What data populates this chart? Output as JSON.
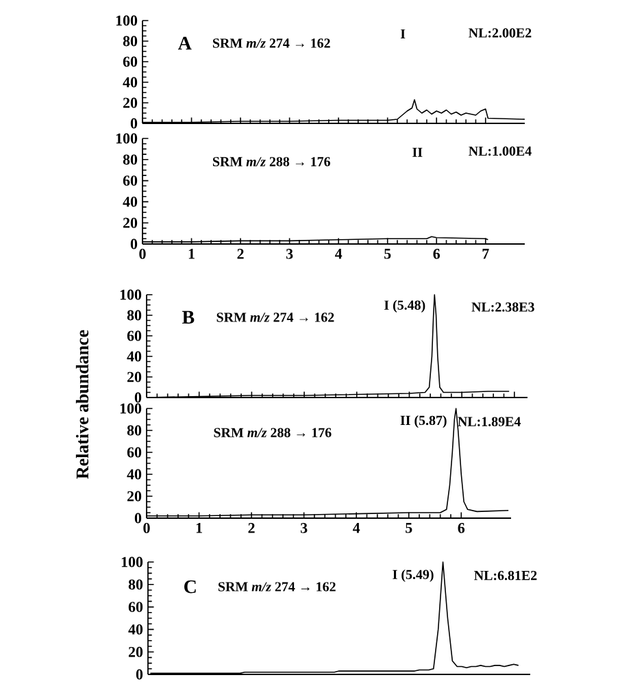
{
  "chart_data": [
    {
      "type": "line",
      "x": [
        0,
        1,
        2,
        3,
        4,
        5,
        5.2,
        5.3,
        5.4,
        5.5,
        5.55,
        5.6,
        5.7,
        5.8,
        5.9,
        6.0,
        6.1,
        6.2,
        6.3,
        6.4,
        6.5,
        6.6,
        6.7,
        6.8,
        6.9,
        7.0,
        7.05,
        7.8
      ],
      "values": [
        1,
        1,
        2,
        2,
        3,
        3,
        4,
        8,
        12,
        15,
        23,
        14,
        10,
        13,
        9,
        12,
        10,
        13,
        9,
        11,
        8,
        10,
        9,
        8,
        12,
        14,
        5,
        4
      ],
      "color": "#000000",
      "xlim": [
        0,
        7.8
      ],
      "ylim": [
        0,
        100
      ],
      "xticks": [
        0,
        1,
        2,
        3,
        4,
        5,
        6,
        7
      ],
      "yticks": [
        0,
        20,
        40,
        60,
        80,
        100
      ],
      "tick_labels": "y",
      "annotations": [
        "A",
        "SRM *m/z* 274 → 162",
        "I",
        "NL:2.00E2"
      ]
    },
    {
      "type": "line",
      "x": [
        0,
        1,
        2,
        3,
        4,
        5,
        5.8,
        5.9,
        6.0,
        7.0,
        7.05
      ],
      "values": [
        2,
        2,
        3,
        3,
        4,
        5,
        5,
        7,
        6,
        5,
        4
      ],
      "color": "#000000",
      "xlim": [
        0,
        7.8
      ],
      "ylim": [
        0,
        100
      ],
      "xticks": [
        0,
        1,
        2,
        3,
        4,
        5,
        6,
        7
      ],
      "yticks": [
        0,
        20,
        40,
        60,
        80,
        100
      ],
      "annotations": [
        "SRM *m/z* 288 → 176",
        "II",
        "NL:1.00E4"
      ]
    },
    {
      "type": "line",
      "x": [
        0,
        1,
        2,
        3,
        4,
        5,
        5.3,
        5.38,
        5.43,
        5.46,
        5.48,
        5.51,
        5.54,
        5.58,
        5.65,
        6.0,
        6.5,
        6.9
      ],
      "values": [
        0,
        1,
        2,
        2,
        3,
        4,
        5,
        10,
        40,
        80,
        100,
        80,
        40,
        10,
        5,
        5,
        6,
        6
      ],
      "color": "#000000",
      "xlim": [
        0,
        7.25
      ],
      "ylim": [
        0,
        100
      ],
      "xticks": [
        0,
        1,
        2,
        3,
        4,
        5,
        6,
        7
      ],
      "yticks": [
        0,
        20,
        40,
        60,
        80,
        100
      ],
      "tick_labels": "y",
      "ylabel": "Relative abundance",
      "annotations": [
        "B",
        "SRM *m/z* 274 → 162",
        "I (5.48)",
        "NL:2.38E3"
      ]
    },
    {
      "type": "line",
      "x": [
        0,
        1,
        2,
        3,
        4,
        5,
        5.6,
        5.72,
        5.78,
        5.83,
        5.87,
        5.9,
        5.94,
        6.0,
        6.05,
        6.12,
        6.3,
        6.9
      ],
      "values": [
        2,
        2,
        3,
        3,
        4,
        5,
        5,
        8,
        30,
        60,
        90,
        100,
        80,
        40,
        15,
        8,
        6,
        7
      ],
      "color": "#000000",
      "xlim": [
        0,
        6.95
      ],
      "ylim": [
        0,
        100
      ],
      "xticks": [
        0,
        1,
        2,
        3,
        4,
        5,
        6
      ],
      "yticks": [
        0,
        20,
        40,
        60,
        80,
        100
      ],
      "annotations": [
        "SRM *m/z* 288 → 176",
        "II (5.87)",
        "NL:1.89E4"
      ]
    },
    {
      "type": "line",
      "categories": [
        null,
        null,
        null,
        null,
        null,
        null,
        null,
        null,
        null,
        null,
        null,
        null,
        null,
        null,
        null,
        null,
        null,
        null,
        null,
        null,
        null,
        null,
        null,
        null,
        null,
        null,
        null,
        null,
        null,
        null,
        null,
        null,
        null,
        null,
        null,
        null,
        null,
        null,
        null,
        null,
        null,
        null,
        null,
        null,
        null,
        null,
        null,
        null,
        null,
        null,
        null,
        null,
        null,
        null,
        null,
        null,
        null,
        null,
        null,
        null,
        null,
        null,
        null,
        null,
        null,
        null,
        null,
        null,
        null,
        null,
        null,
        null,
        null,
        null,
        null,
        null,
        null,
        null,
        null,
        null,
        null
      ],
      "values": [
        1,
        1,
        1,
        1,
        1,
        1,
        1,
        1,
        1,
        1,
        1,
        1,
        1,
        1,
        1,
        1,
        1,
        1,
        1,
        1,
        2,
        2,
        2,
        2,
        2,
        2,
        2,
        2,
        2,
        2,
        2,
        2,
        2,
        2,
        2,
        2,
        2,
        2,
        2,
        2,
        3,
        3,
        3,
        3,
        3,
        3,
        3,
        3,
        3,
        3,
        3,
        3,
        3,
        3,
        3,
        3,
        3,
        4,
        4,
        4,
        5,
        40,
        100,
        50,
        12,
        7,
        7,
        6,
        7,
        7,
        8,
        7,
        7,
        8,
        8,
        7,
        8,
        9,
        8,
        null,
        null
      ],
      "color": "#000000",
      "ylim": [
        0,
        100
      ],
      "yticks": [
        0,
        20,
        40,
        60,
        80,
        100
      ],
      "tick_labels": "y",
      "annotations": [
        "C",
        "SRM *m/z* 274 → 162",
        "I (5.49)",
        "NL:6.81E2"
      ]
    }
  ]
}
